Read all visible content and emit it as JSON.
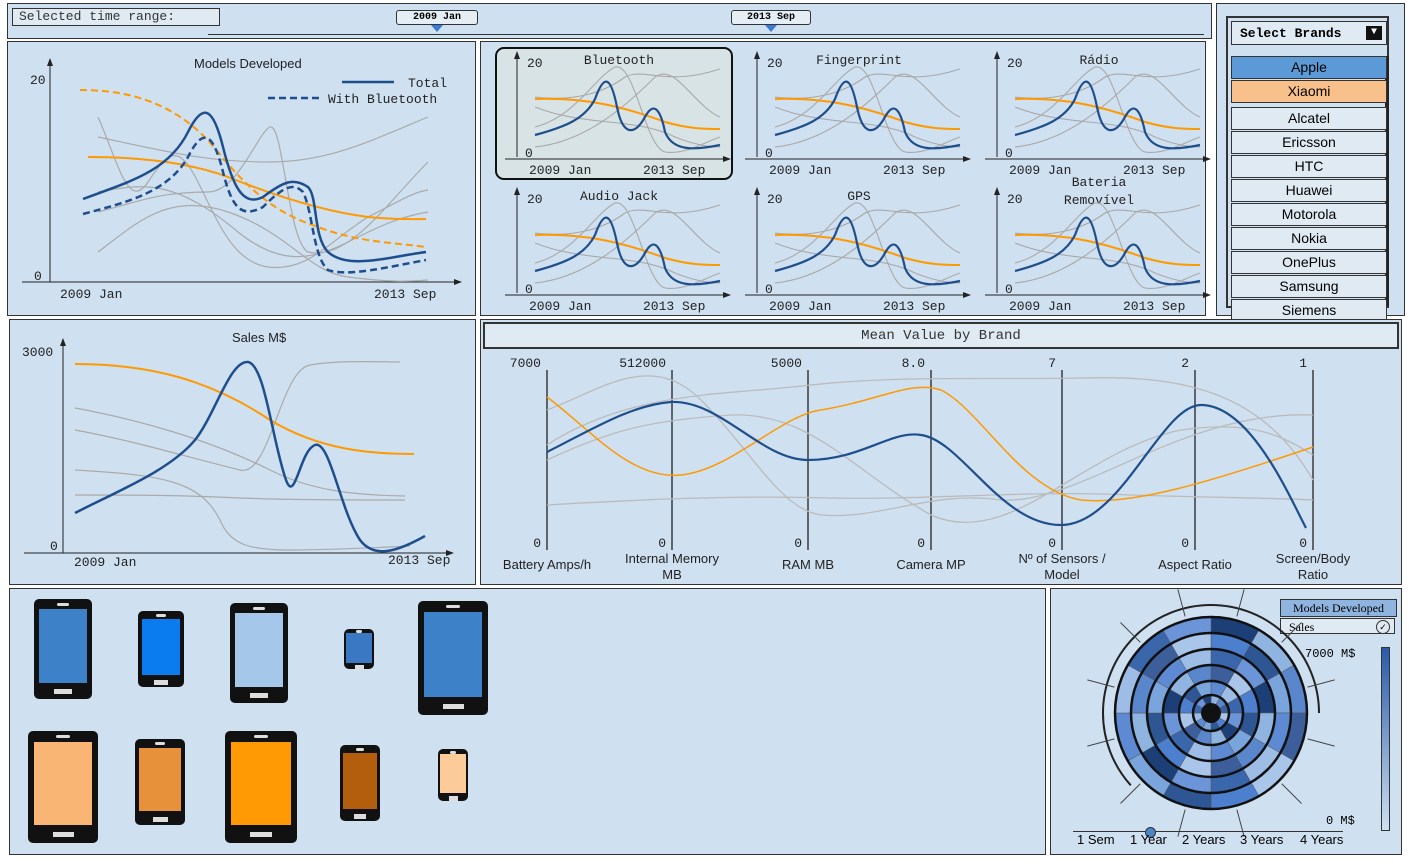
{
  "time_range": {
    "label": "Selected time range:",
    "start_marker": "2009 Jan",
    "end_marker": "2013 Sep"
  },
  "brand_selector": {
    "title": "Select Brands",
    "selected": [
      {
        "name": "Apple",
        "color": "#5b9ad6"
      },
      {
        "name": "Xiaomi",
        "color": "#f8c08a"
      }
    ],
    "others": [
      "Alcatel",
      "Ericsson",
      "HTC",
      "Huawei",
      "Motorola",
      "Nokia",
      "OnePlus",
      "Samsung",
      "Siemens"
    ]
  },
  "colors": {
    "apple": "#1f4e8c",
    "xiaomi": "#ff9900",
    "other": "#a9a9a9",
    "panel": "#cfe0f1"
  },
  "models_developed": {
    "title": "Models Developed",
    "legend": {
      "total": "Total",
      "with_bluetooth": "With Bluetooth"
    },
    "y_max": "20",
    "y_min": "0",
    "x_start": "2009 Jan",
    "x_end": "2013 Sep"
  },
  "small_multiples": {
    "y_max": "20",
    "y_min": "0",
    "x_start": "2009 Jan",
    "x_end": "2013 Sep",
    "features": [
      "Bluetooth",
      "Fingerprint",
      "Rádio",
      "Audio Jack",
      "GPS",
      "Bateria\nRemovível"
    ],
    "feature_line1": [
      "Bluetooth",
      "Fingerprint",
      "Rádio",
      "Audio Jack",
      "GPS",
      "Bateria"
    ],
    "feature_line2": [
      "",
      "",
      "",
      "",
      "",
      "Removível"
    ],
    "selected": "Bluetooth"
  },
  "sales": {
    "title": "Sales M$",
    "y_max": "3000",
    "y_min": "0",
    "x_start": "2009 Jan",
    "x_end": "2013 Sep"
  },
  "parallel": {
    "title": "Mean Value by Brand",
    "axes": [
      {
        "label1": "Battery Amps/h",
        "label2": "",
        "max": "7000",
        "min": "0"
      },
      {
        "label1": "Internal Memory",
        "label2": "MB",
        "max": "512000",
        "min": "0"
      },
      {
        "label1": "RAM MB",
        "label2": "",
        "max": "5000",
        "min": "0"
      },
      {
        "label1": "Camera MP",
        "label2": "",
        "max": "8.0",
        "min": "0"
      },
      {
        "label1": "Nº of Sensors /",
        "label2": "Model",
        "max": "7",
        "min": "0"
      },
      {
        "label1": "Aspect Ratio",
        "label2": "",
        "max": "2",
        "min": "0"
      },
      {
        "label1": "Screen/Body",
        "label2": "Ratio",
        "max": "1",
        "min": "0"
      }
    ]
  },
  "spiral": {
    "metric_options": [
      "Models Developed",
      "Sales"
    ],
    "selected_metric": "Models Developed",
    "scale_max": "7000  M$",
    "scale_min": "0  M$",
    "period_labels": [
      "1 Sem",
      "1 Year",
      "2 Years",
      "3 Years",
      "4 Years"
    ],
    "selected_period": "1 Year"
  }
}
